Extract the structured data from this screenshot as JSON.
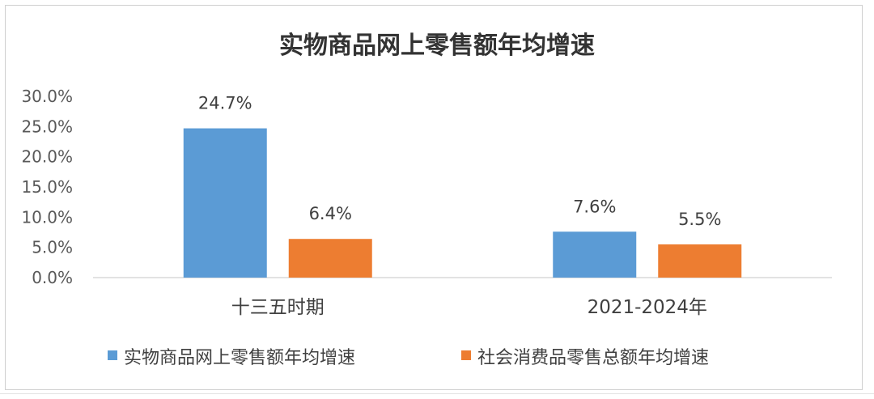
{
  "chart_data": {
    "type": "bar",
    "title": "实物商品网上零售额年均增速",
    "categories": [
      "十三五时期",
      "2021-2024年"
    ],
    "series": [
      {
        "name": "实物商品网上零售额年均增速",
        "color": "#5b9bd5",
        "values": [
          24.7,
          7.6
        ],
        "labels": [
          "24.7%",
          "7.6%"
        ]
      },
      {
        "name": "社会消费品零售总额年均增速",
        "color": "#ed7d31",
        "values": [
          6.4,
          5.5
        ],
        "labels": [
          "6.4%",
          "5.5%"
        ]
      }
    ],
    "ylim": [
      0,
      30
    ],
    "yticks": [
      0,
      5,
      10,
      15,
      20,
      25,
      30
    ],
    "ytick_labels": [
      "0.0%",
      "5.0%",
      "10.0%",
      "15.0%",
      "20.0%",
      "25.0%",
      "30.0%"
    ],
    "xlabel": "",
    "ylabel": "",
    "grid": false,
    "legend_position": "bottom"
  }
}
